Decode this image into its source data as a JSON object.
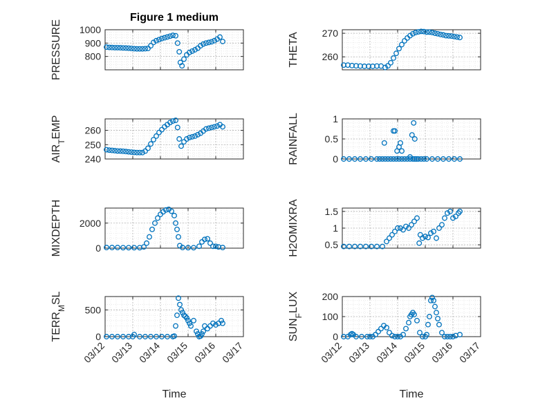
{
  "figure": {
    "title": "Figure 1 medium",
    "xlabel": "Time",
    "x_tick_labels": [
      "03/12",
      "03/13",
      "03/14",
      "03/15",
      "03/16",
      "03/17"
    ],
    "marker_color": "#0072BD",
    "grid": "on (major + minor, dotted)"
  },
  "chart_data": [
    {
      "type": "scatter",
      "marker": "circle",
      "ylabel": "PRESSURE",
      "ylim": [
        700,
        1000
      ],
      "yticks": [
        800,
        900,
        1000
      ],
      "xlim": [
        0,
        5
      ],
      "x": [
        0.05,
        0.15,
        0.25,
        0.35,
        0.45,
        0.55,
        0.65,
        0.75,
        0.85,
        0.95,
        1.05,
        1.15,
        1.25,
        1.35,
        1.45,
        1.55,
        1.65,
        1.75,
        1.85,
        1.95,
        2.05,
        2.15,
        2.25,
        2.35,
        2.45,
        2.55,
        2.62,
        2.68,
        2.72,
        2.78,
        2.85,
        2.95,
        3.05,
        3.15,
        3.25,
        3.35,
        3.45,
        3.55,
        3.65,
        3.75,
        3.85,
        3.95,
        4.05,
        4.15,
        4.25
      ],
      "y": [
        870,
        868,
        867,
        866,
        866,
        865,
        864,
        863,
        862,
        860,
        858,
        857,
        857,
        857,
        858,
        860,
        880,
        905,
        918,
        926,
        934,
        940,
        946,
        952,
        958,
        955,
        900,
        835,
        755,
        730,
        780,
        812,
        830,
        840,
        850,
        862,
        880,
        893,
        900,
        905,
        910,
        918,
        930,
        945,
        912
      ]
    },
    {
      "type": "scatter",
      "marker": "circle",
      "ylabel": "THETA",
      "ylim": [
        254.5,
        271.5
      ],
      "yticks": [
        260,
        270
      ],
      "xlim": [
        0,
        5
      ],
      "x": [
        0.05,
        0.2,
        0.35,
        0.5,
        0.65,
        0.8,
        0.95,
        1.1,
        1.25,
        1.4,
        1.55,
        1.65,
        1.75,
        1.85,
        1.95,
        2.05,
        2.15,
        2.25,
        2.35,
        2.45,
        2.55,
        2.65,
        2.75,
        2.85,
        2.95,
        3.05,
        3.15,
        3.25,
        3.35,
        3.45,
        3.55,
        3.65,
        3.75,
        3.85,
        3.95,
        4.05,
        4.15,
        4.25
      ],
      "y": [
        256.5,
        256.5,
        256.3,
        256.2,
        256.1,
        256.0,
        256.0,
        256.0,
        256.1,
        256.1,
        255.5,
        256.2,
        257.5,
        259.5,
        261.5,
        263.5,
        265.2,
        266.8,
        268.0,
        269.0,
        269.8,
        270.3,
        270.6,
        270.8,
        270.7,
        270.5,
        270.5,
        270.3,
        270.0,
        269.8,
        269.5,
        269.3,
        269.0,
        268.9,
        268.8,
        268.6,
        268.4,
        268.2
      ]
    },
    {
      "type": "scatter",
      "marker": "circle",
      "ylabel": "AIR_TEMP",
      "ylim": [
        240,
        268
      ],
      "yticks": [
        240,
        250,
        260
      ],
      "xlim": [
        0,
        5
      ],
      "x": [
        0.05,
        0.15,
        0.25,
        0.35,
        0.45,
        0.55,
        0.65,
        0.75,
        0.85,
        0.95,
        1.05,
        1.15,
        1.25,
        1.35,
        1.45,
        1.55,
        1.65,
        1.75,
        1.85,
        1.95,
        2.05,
        2.15,
        2.25,
        2.35,
        2.45,
        2.55,
        2.62,
        2.68,
        2.75,
        2.85,
        2.95,
        3.05,
        3.15,
        3.25,
        3.35,
        3.45,
        3.55,
        3.65,
        3.75,
        3.85,
        3.95,
        4.05,
        4.15,
        4.25
      ],
      "y": [
        246.5,
        246.2,
        246.0,
        245.8,
        245.6,
        245.5,
        245.4,
        245.2,
        245.0,
        244.8,
        244.6,
        244.5,
        244.5,
        244.5,
        245.5,
        247.5,
        250.5,
        253.5,
        256.0,
        258.5,
        260.5,
        262.5,
        264.0,
        265.5,
        266.5,
        267.0,
        262.0,
        254.0,
        249.0,
        252.0,
        254.0,
        255.0,
        255.5,
        256.0,
        257.0,
        258.0,
        259.5,
        261.0,
        261.5,
        262.0,
        262.5,
        263.0,
        264.0,
        262.5
      ]
    },
    {
      "type": "scatter",
      "marker": "circle",
      "ylabel": "RAINFALL",
      "ylim": [
        0,
        1
      ],
      "yticks": [
        0,
        0.5,
        1
      ],
      "xlim": [
        0,
        5
      ],
      "x": [
        0.05,
        0.25,
        0.45,
        0.65,
        0.85,
        1.05,
        1.25,
        1.35,
        1.45,
        1.55,
        1.65,
        1.75,
        1.85,
        1.95,
        2.05,
        2.15,
        2.25,
        2.35,
        2.45,
        2.55,
        2.62,
        2.68,
        2.75,
        2.85,
        2.95,
        3.05,
        3.25,
        3.45,
        3.65,
        3.85,
        4.05,
        4.25,
        1.52,
        1.85,
        1.9,
        1.98,
        2.05,
        2.1,
        2.15,
        2.45,
        2.52,
        2.58,
        2.62
      ],
      "y": [
        0,
        0,
        0,
        0,
        0,
        0,
        0,
        0,
        0,
        0,
        0,
        0,
        0,
        0,
        0,
        0,
        0,
        0,
        0,
        0,
        0,
        0,
        0,
        0,
        0,
        0,
        0,
        0,
        0,
        0,
        0,
        0,
        0.4,
        0.7,
        0.7,
        0.2,
        0.3,
        0.4,
        0.2,
        0.05,
        0.6,
        0.9,
        0.5
      ]
    },
    {
      "type": "scatter",
      "marker": "circle",
      "ylabel": "MIXDEPTH",
      "ylim": [
        0,
        3200
      ],
      "yticks": [
        0,
        2000
      ],
      "xlim": [
        0,
        5
      ],
      "x": [
        0.05,
        0.25,
        0.45,
        0.65,
        0.85,
        1.05,
        1.25,
        1.4,
        1.5,
        1.6,
        1.7,
        1.8,
        1.9,
        2.0,
        2.1,
        2.2,
        2.3,
        2.4,
        2.5,
        2.55,
        2.6,
        2.65,
        2.7,
        2.8,
        3.0,
        3.2,
        3.4,
        3.5,
        3.6,
        3.7,
        3.8,
        3.9,
        4.0,
        4.1,
        4.25
      ],
      "y": [
        50,
        50,
        50,
        40,
        40,
        40,
        40,
        100,
        400,
        900,
        1500,
        2000,
        2400,
        2700,
        2900,
        3050,
        3100,
        2950,
        2600,
        2000,
        1500,
        900,
        200,
        50,
        40,
        40,
        150,
        500,
        700,
        750,
        400,
        150,
        150,
        100,
        50
      ]
    },
    {
      "type": "scatter",
      "marker": "circle",
      "ylabel": "H2OMIXRA",
      "ylim": [
        0.4,
        1.6
      ],
      "yticks": [
        0.5,
        1,
        1.5
      ],
      "xlim": [
        0,
        5
      ],
      "x": [
        0.05,
        0.25,
        0.45,
        0.65,
        0.85,
        1.05,
        1.25,
        1.45,
        1.6,
        1.7,
        1.8,
        1.9,
        2.0,
        2.1,
        2.2,
        2.3,
        2.4,
        2.5,
        2.6,
        2.7,
        2.78,
        2.82,
        2.9,
        3.0,
        3.1,
        3.2,
        3.3,
        3.4,
        3.5,
        3.6,
        3.7,
        3.8,
        3.9,
        4.0,
        4.1,
        4.2,
        4.25
      ],
      "y": [
        0.45,
        0.45,
        0.45,
        0.45,
        0.45,
        0.45,
        0.45,
        0.45,
        0.6,
        0.7,
        0.8,
        0.9,
        1.0,
        1.0,
        0.95,
        1.05,
        1.0,
        1.1,
        1.2,
        1.3,
        0.55,
        0.8,
        0.7,
        0.75,
        0.72,
        0.85,
        0.9,
        0.7,
        1.0,
        1.1,
        1.3,
        1.45,
        1.5,
        1.3,
        1.35,
        1.45,
        1.5
      ]
    },
    {
      "type": "scatter",
      "marker": "circle",
      "ylabel": "TERR_MSL",
      "ylim": [
        0,
        750
      ],
      "yticks": [
        0,
        500
      ],
      "xlim": [
        0,
        5
      ],
      "x": [
        0.05,
        0.25,
        0.45,
        0.65,
        0.85,
        1.0,
        1.05,
        1.25,
        1.45,
        1.65,
        1.85,
        2.05,
        2.25,
        2.45,
        2.5,
        2.55,
        2.6,
        2.65,
        2.7,
        2.75,
        2.8,
        2.85,
        2.9,
        2.95,
        3.0,
        3.05,
        3.1,
        3.2,
        3.3,
        3.35,
        3.4,
        3.45,
        3.5,
        3.55,
        3.6,
        3.7,
        3.8,
        3.9,
        4.0,
        4.1,
        4.2,
        4.25
      ],
      "y": [
        0,
        0,
        0,
        0,
        0,
        0,
        40,
        0,
        0,
        0,
        0,
        0,
        0,
        0,
        10,
        200,
        400,
        720,
        600,
        500,
        450,
        400,
        380,
        350,
        300,
        250,
        200,
        300,
        100,
        50,
        0,
        10,
        50,
        100,
        200,
        150,
        200,
        250,
        220,
        250,
        300,
        250
      ]
    },
    {
      "type": "scatter",
      "marker": "circle",
      "ylabel": "SUN_FLUX",
      "ylim": [
        0,
        200
      ],
      "yticks": [
        0,
        100,
        200
      ],
      "xlim": [
        0,
        5
      ],
      "x": [
        0.05,
        0.2,
        0.3,
        0.35,
        0.4,
        0.5,
        0.7,
        0.9,
        1.0,
        1.1,
        1.2,
        1.3,
        1.4,
        1.5,
        1.6,
        1.7,
        1.8,
        1.9,
        2.0,
        2.1,
        2.2,
        2.3,
        2.4,
        2.45,
        2.5,
        2.55,
        2.6,
        2.7,
        2.8,
        2.9,
        3.0,
        3.05,
        3.1,
        3.15,
        3.2,
        3.25,
        3.3,
        3.35,
        3.4,
        3.45,
        3.5,
        3.6,
        3.7,
        3.8,
        3.9,
        4.0,
        4.1,
        4.25
      ],
      "y": [
        0,
        0,
        10,
        15,
        10,
        0,
        0,
        0,
        0,
        0,
        10,
        25,
        40,
        55,
        45,
        20,
        5,
        0,
        0,
        0,
        10,
        40,
        70,
        100,
        110,
        120,
        110,
        80,
        20,
        0,
        0,
        10,
        60,
        100,
        180,
        195,
        180,
        150,
        120,
        90,
        60,
        20,
        0,
        0,
        0,
        0,
        5,
        10
      ]
    }
  ]
}
